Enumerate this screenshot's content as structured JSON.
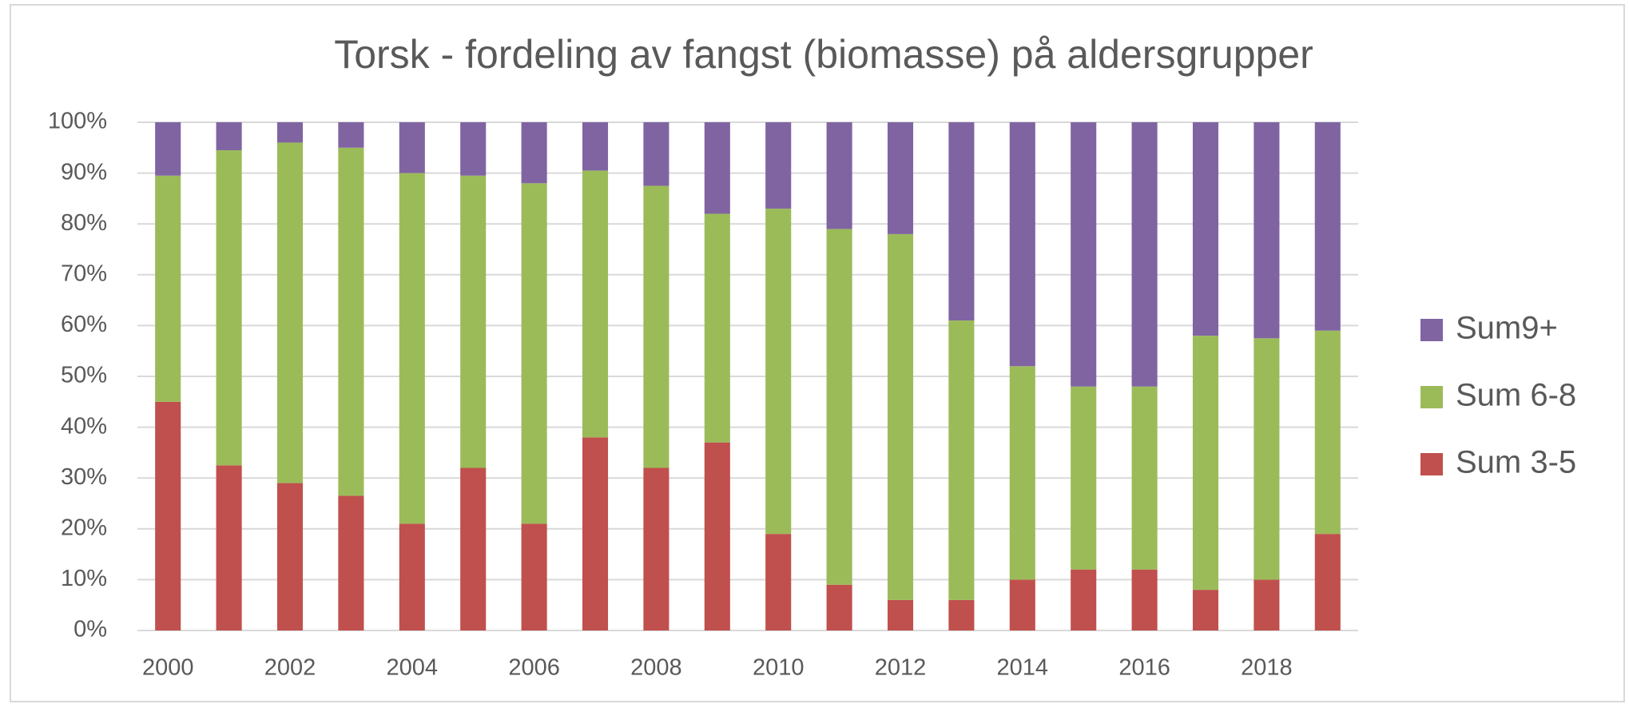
{
  "chart_data": {
    "type": "stacked_bar",
    "title": "Torsk - fordeling av fangst (biomasse) på aldersgrupper",
    "categories": [
      "2000",
      null,
      "2002",
      null,
      "2004",
      null,
      "2006",
      null,
      "2008",
      null,
      "2010",
      null,
      "2012",
      null,
      "2014",
      null,
      "2016",
      null,
      "2018",
      null
    ],
    "series": [
      {
        "name": "Sum 3-5",
        "color": "#c0504d",
        "values": [
          45,
          32.5,
          29,
          26.5,
          21,
          32,
          21,
          38,
          32,
          37,
          19,
          9,
          6,
          6,
          10,
          12,
          12,
          8,
          10,
          19
        ]
      },
      {
        "name": "Sum 6-8",
        "color": "#9bbb59",
        "values": [
          44.5,
          62,
          67,
          68.5,
          69,
          57.5,
          67,
          52.5,
          55.5,
          45,
          64,
          70,
          72,
          55,
          42,
          36,
          36,
          50,
          47.5,
          40
        ]
      },
      {
        "name": "Sum9+",
        "color": "#8064a2",
        "values": [
          10.5,
          5.5,
          4,
          5,
          10,
          10.5,
          12,
          9.5,
          12.5,
          18,
          17,
          21,
          22,
          39,
          48,
          52,
          52,
          42,
          42.5,
          41
        ]
      }
    ],
    "ylim": [
      0,
      100
    ],
    "yticks": [
      {
        "value": 0,
        "label": "0%"
      },
      {
        "value": 10,
        "label": "10%"
      },
      {
        "value": 20,
        "label": "20%"
      },
      {
        "value": 30,
        "label": "30%"
      },
      {
        "value": 40,
        "label": "40%"
      },
      {
        "value": 50,
        "label": "50%"
      },
      {
        "value": 60,
        "label": "60%"
      },
      {
        "value": 70,
        "label": "70%"
      },
      {
        "value": 80,
        "label": "80%"
      },
      {
        "value": 90,
        "label": "90%"
      },
      {
        "value": 100,
        "label": "100%"
      }
    ],
    "grid": true,
    "legend": "right"
  }
}
